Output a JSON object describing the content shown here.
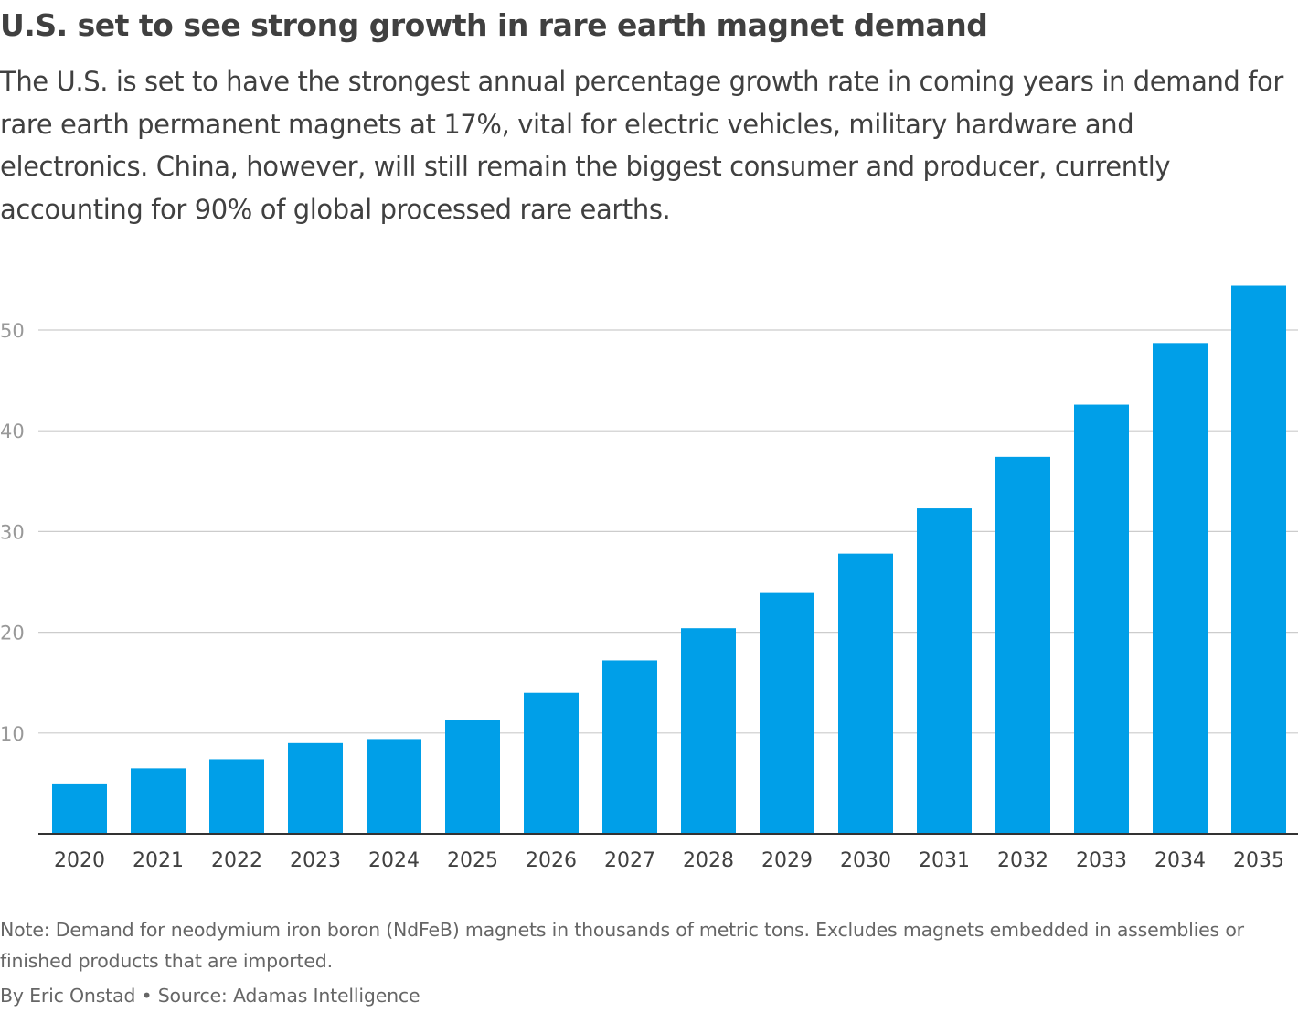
{
  "chart_data": {
    "type": "bar",
    "title": "U.S. set to see strong growth in rare earth magnet demand",
    "subtitle": "The U.S. is set to have the strongest annual percentage growth rate in coming years in demand for rare earth permanent magnets at 17%, vital for electric vehicles, military hardware and electronics. China, however, will still remain the biggest consumer and producer, currently accounting for 90% of global processed rare earths.",
    "categories": [
      "2020",
      "2021",
      "2022",
      "2023",
      "2024",
      "2025",
      "2026",
      "2027",
      "2028",
      "2029",
      "2030",
      "2031",
      "2032",
      "2033",
      "2034",
      "2035"
    ],
    "values": [
      5.0,
      6.5,
      7.4,
      9.0,
      9.4,
      11.3,
      14.0,
      17.2,
      20.4,
      23.9,
      27.8,
      32.3,
      37.4,
      42.6,
      48.7,
      54.4
    ],
    "yticks": [
      10,
      20,
      30,
      40,
      50
    ],
    "ylim": [
      0,
      55
    ],
    "grid": true,
    "xlabel": "",
    "ylabel": "",
    "bar_color": "#009fe8",
    "note": "Note: Demand for neodymium iron boron (NdFeB) magnets in thousands of metric tons. Excludes magnets embedded in assemblies or finished products that are imported.",
    "credit": "By Eric Onstad • Source: Adamas Intelligence"
  }
}
